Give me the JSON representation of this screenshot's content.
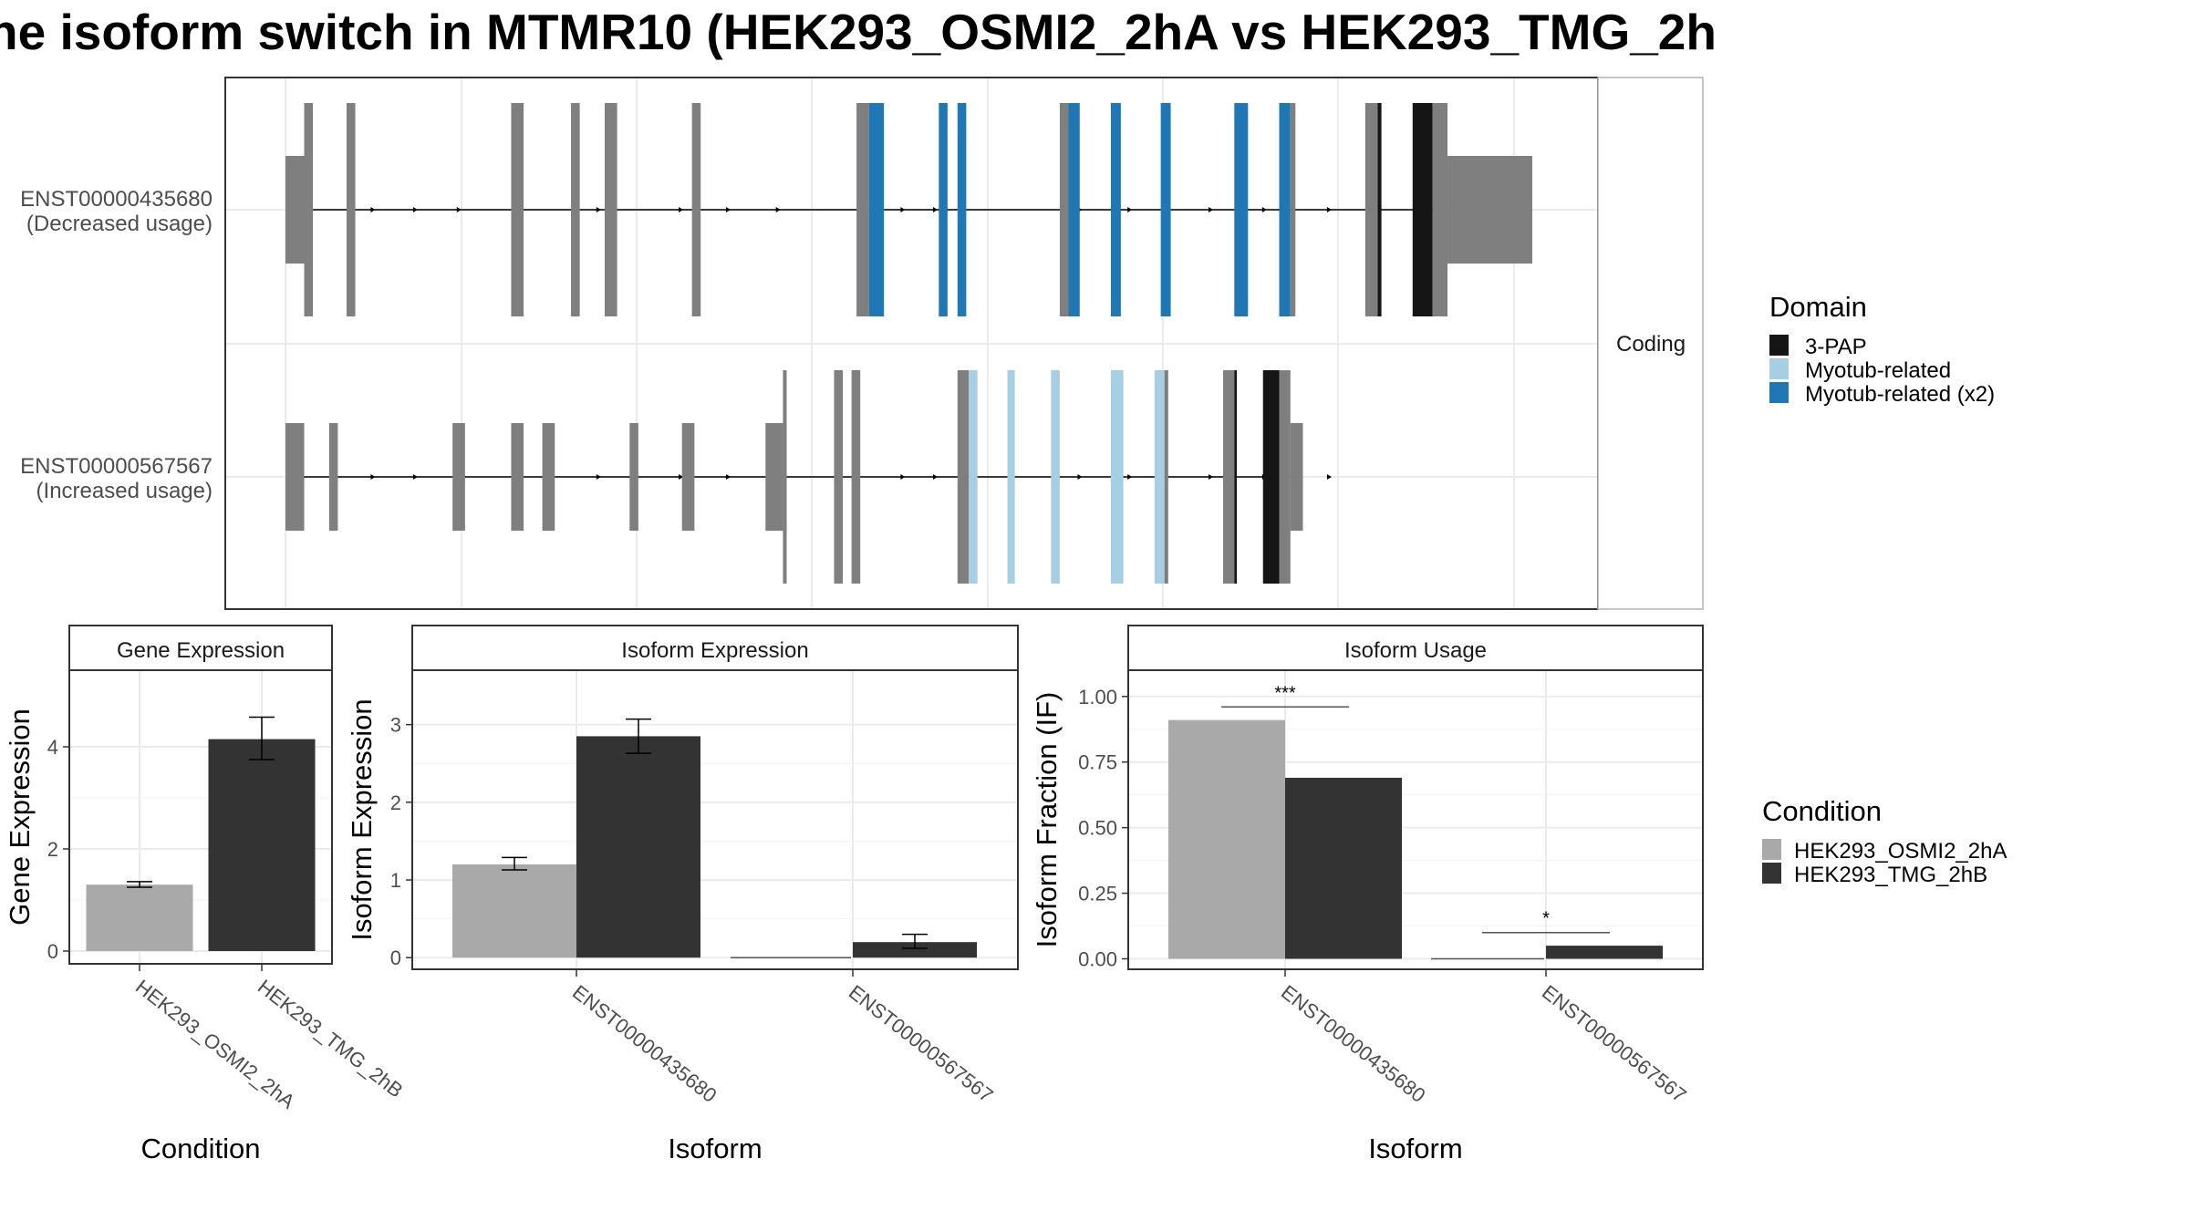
{
  "title": "ne isoform switch in MTMR10 (HEK293_OSMI2_2hA vs HEK293_TMG_2h",
  "colors": {
    "utr_exon": "#7f7f7f",
    "domain_3pap": "#151515",
    "domain_myotub": "#a6cfe3",
    "domain_myotub_x2": "#1f78b4",
    "cond_osmi": "#a9a9a9",
    "cond_tmg": "#333333",
    "grid": "#ebebeb",
    "panel_border": "#333333"
  },
  "transcript_panel": {
    "strip_label": "Coding",
    "rows": [
      {
        "label_line1": "ENST00000435680",
        "label_line2": "(Decreased usage)",
        "exons": [
          {
            "start": 0,
            "end": 15,
            "h": "utr"
          },
          {
            "start": 15,
            "end": 22,
            "h": "cds"
          },
          {
            "start": 49,
            "end": 56,
            "h": "cds"
          },
          {
            "start": 181,
            "end": 191,
            "h": "cds"
          },
          {
            "start": 229,
            "end": 236,
            "h": "cds"
          },
          {
            "start": 256,
            "end": 266,
            "h": "cds"
          },
          {
            "start": 326,
            "end": 333,
            "h": "cds"
          },
          {
            "start": 458,
            "end": 468,
            "h": "cds"
          },
          {
            "start": 468,
            "end": 480,
            "h": "cds",
            "domain": "Myotub-related (x2)"
          },
          {
            "start": 524,
            "end": 531,
            "h": "cds",
            "domain": "Myotub-related (x2)"
          },
          {
            "start": 539,
            "end": 546,
            "h": "cds",
            "domain": "Myotub-related (x2)"
          },
          {
            "start": 621,
            "end": 628,
            "h": "cds"
          },
          {
            "start": 628,
            "end": 637,
            "h": "cds",
            "domain": "Myotub-related (x2)"
          },
          {
            "start": 662,
            "end": 670,
            "h": "cds",
            "domain": "Myotub-related (x2)"
          },
          {
            "start": 702,
            "end": 710,
            "h": "cds",
            "domain": "Myotub-related (x2)"
          },
          {
            "start": 761,
            "end": 772,
            "h": "cds",
            "domain": "Myotub-related (x2)"
          },
          {
            "start": 797,
            "end": 806,
            "h": "cds",
            "domain": "Myotub-related (x2)"
          },
          {
            "start": 806,
            "end": 810,
            "h": "cds"
          },
          {
            "start": 866,
            "end": 876,
            "h": "cds"
          },
          {
            "start": 876,
            "end": 879,
            "h": "cds",
            "domain": "3-PAP"
          },
          {
            "start": 904,
            "end": 920,
            "h": "cds",
            "domain": "3-PAP"
          },
          {
            "start": 920,
            "end": 932,
            "h": "cds"
          },
          {
            "start": 932,
            "end": 1000,
            "h": "utr"
          }
        ],
        "arrows": [
          72,
          106,
          141,
          253,
          319,
          357,
          397,
          497,
          523,
          639,
          679,
          744,
          787,
          839
        ]
      },
      {
        "label_line1": "ENST00000567567",
        "label_line2": "(Increased usage)",
        "exons": [
          {
            "start": 0,
            "end": 15,
            "h": "utr"
          },
          {
            "start": 35,
            "end": 42,
            "h": "utr"
          },
          {
            "start": 134,
            "end": 144,
            "h": "utr"
          },
          {
            "start": 181,
            "end": 191,
            "h": "utr"
          },
          {
            "start": 206,
            "end": 216,
            "h": "utr"
          },
          {
            "start": 276,
            "end": 283,
            "h": "utr"
          },
          {
            "start": 318,
            "end": 328,
            "h": "utr"
          },
          {
            "start": 385,
            "end": 399,
            "h": "utr"
          },
          {
            "start": 399,
            "end": 402,
            "h": "cds"
          },
          {
            "start": 440,
            "end": 447,
            "h": "cds"
          },
          {
            "start": 454,
            "end": 461,
            "h": "cds"
          },
          {
            "start": 539,
            "end": 548,
            "h": "cds"
          },
          {
            "start": 548,
            "end": 555,
            "h": "cds",
            "domain": "Myotub-related"
          },
          {
            "start": 579,
            "end": 585,
            "h": "cds",
            "domain": "Myotub-related"
          },
          {
            "start": 614,
            "end": 621,
            "h": "cds",
            "domain": "Myotub-related"
          },
          {
            "start": 662,
            "end": 672,
            "h": "cds",
            "domain": "Myotub-related"
          },
          {
            "start": 697,
            "end": 705,
            "h": "cds",
            "domain": "Myotub-related"
          },
          {
            "start": 705,
            "end": 708,
            "h": "cds"
          },
          {
            "start": 752,
            "end": 761,
            "h": "cds"
          },
          {
            "start": 761,
            "end": 763,
            "h": "cds",
            "domain": "3-PAP"
          },
          {
            "start": 784,
            "end": 797,
            "h": "cds",
            "domain": "3-PAP"
          },
          {
            "start": 797,
            "end": 806,
            "h": "cds"
          },
          {
            "start": 806,
            "end": 816,
            "h": "utr"
          }
        ],
        "arrows": [
          72,
          106,
          141,
          253,
          319,
          357,
          397,
          497,
          523,
          639,
          679,
          744,
          787,
          839
        ]
      }
    ]
  },
  "legend_domain": {
    "title": "Domain",
    "items": [
      "3-PAP",
      "Myotub-related",
      "Myotub-related (x2)"
    ]
  },
  "legend_condition": {
    "title": "Condition",
    "items": [
      "HEK293_OSMI2_2hA",
      "HEK293_TMG_2hB"
    ]
  },
  "chart_data": [
    {
      "type": "bar",
      "title": "Gene Expression",
      "xlabel": "Condition",
      "ylabel": "Gene Expression",
      "categories": [
        "HEK293_OSMI2_2hA",
        "HEK293_TMG_2hB"
      ],
      "values": [
        1.3,
        4.15
      ],
      "error_low": [
        1.25,
        3.75
      ],
      "error_high": [
        1.36,
        4.58
      ],
      "ylim": [
        -0.25,
        5.5
      ],
      "yticks": [
        "0",
        "2",
        "4"
      ],
      "ytick_values": [
        0,
        2,
        4
      ]
    },
    {
      "type": "bar",
      "title": "Isoform Expression",
      "xlabel": "Isoform",
      "ylabel": "Isoform Expression",
      "categories": [
        "ENST00000435680",
        "ENST00000567567"
      ],
      "series": [
        {
          "name": "HEK293_OSMI2_2hA",
          "values": [
            1.2,
            0.0
          ],
          "error_low": [
            1.13,
            0.0
          ],
          "error_high": [
            1.29,
            0.0
          ]
        },
        {
          "name": "HEK293_TMG_2hB",
          "values": [
            2.85,
            0.2
          ],
          "error_low": [
            2.63,
            0.12
          ],
          "error_high": [
            3.07,
            0.3
          ]
        }
      ],
      "ylim": [
        -0.15,
        3.7
      ],
      "yticks": [
        "0",
        "1",
        "2",
        "3"
      ],
      "ytick_values": [
        0,
        1,
        2,
        3
      ]
    },
    {
      "type": "bar",
      "title": "Isoform Usage",
      "xlabel": "Isoform",
      "ylabel": "Isoform Fraction (IF)",
      "categories": [
        "ENST00000435680",
        "ENST00000567567"
      ],
      "series": [
        {
          "name": "HEK293_OSMI2_2hA",
          "values": [
            0.91,
            0.0
          ]
        },
        {
          "name": "HEK293_TMG_2hB",
          "values": [
            0.69,
            0.05
          ]
        }
      ],
      "significance": [
        "***",
        "*"
      ],
      "significance_y": [
        0.96,
        0.1
      ],
      "ylim": [
        -0.04,
        1.1
      ],
      "yticks": [
        "0.00",
        "0.25",
        "0.50",
        "0.75",
        "1.00"
      ],
      "ytick_values": [
        0,
        0.25,
        0.5,
        0.75,
        1.0
      ]
    }
  ]
}
